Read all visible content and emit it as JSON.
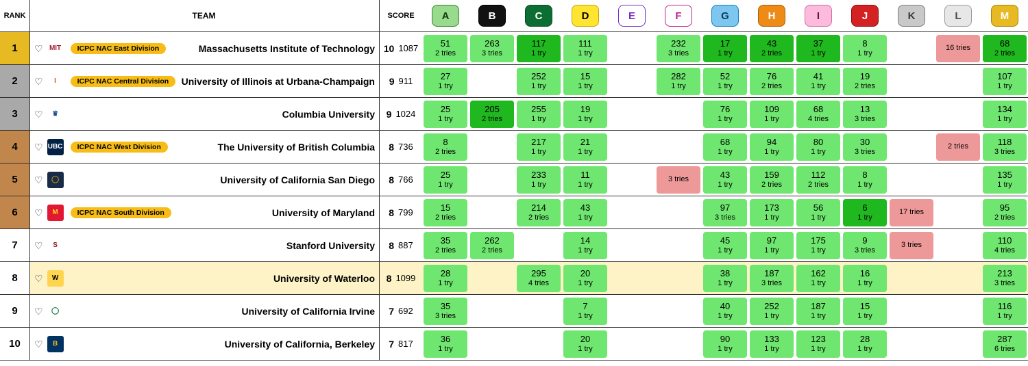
{
  "colors": {
    "solved": "#6fe66f",
    "solved_first": "#1fb81f",
    "wrong": "#ee9999",
    "rank_gold": "#e7b923",
    "rank_silver": "#a9a9a9",
    "rank_bronze": "#c0864c",
    "rank_none": "#ffffff",
    "row_highlight": "#fdf3c7",
    "division_pill": "#f7bd16",
    "border": "#333333"
  },
  "headers": {
    "rank": "RANK",
    "team": "TEAM",
    "score": "SCORE"
  },
  "problems": [
    {
      "id": "A",
      "bg": "#9ada8f",
      "border": "#2a8a1e",
      "fg": "#0b4407"
    },
    {
      "id": "B",
      "bg": "#111111",
      "border": "#000000",
      "fg": "#ffffff"
    },
    {
      "id": "C",
      "bg": "#0d6e34",
      "border": "#084a22",
      "fg": "#ffffff"
    },
    {
      "id": "D",
      "bg": "#ffe531",
      "border": "#c2a500",
      "fg": "#000000"
    },
    {
      "id": "E",
      "bg": "#ffffff",
      "border": "#7b2cc6",
      "fg": "#7b2cc6"
    },
    {
      "id": "F",
      "bg": "#ffffff",
      "border": "#c21e90",
      "fg": "#c21e90"
    },
    {
      "id": "G",
      "bg": "#7cc6ef",
      "border": "#1b7bbf",
      "fg": "#0a3a5a"
    },
    {
      "id": "H",
      "bg": "#ed8b16",
      "border": "#a85d06",
      "fg": "#ffffff"
    },
    {
      "id": "I",
      "bg": "#fcbadc",
      "border": "#d26aa6",
      "fg": "#6a1247"
    },
    {
      "id": "J",
      "bg": "#d42222",
      "border": "#8e0f0f",
      "fg": "#ffffff"
    },
    {
      "id": "K",
      "bg": "#c9c9c9",
      "border": "#7a7a7a",
      "fg": "#3a3a3a"
    },
    {
      "id": "L",
      "bg": "#e7e7e7",
      "border": "#9a9a9a",
      "fg": "#4a4a4a"
    },
    {
      "id": "M",
      "bg": "#e7b923",
      "border": "#a8820d",
      "fg": "#ffffff"
    }
  ],
  "teams": [
    {
      "rank": 1,
      "rank_color": "rank_gold",
      "name": "Massachusetts Institute of Technology",
      "division": "ICPC NAC East Division",
      "logo": {
        "bg": "#ffffff",
        "fg": "#a31f34",
        "text": "MIT"
      },
      "solved": 10,
      "time": 1087,
      "highlighted": false,
      "cells": {
        "A": {
          "status": "solved",
          "time": 51,
          "tries": "2 tries"
        },
        "B": {
          "status": "solved",
          "time": 263,
          "tries": "3 tries"
        },
        "C": {
          "status": "solved_first",
          "time": 117,
          "tries": "1 try"
        },
        "D": {
          "status": "solved",
          "time": 111,
          "tries": "1 try"
        },
        "F": {
          "status": "solved",
          "time": 232,
          "tries": "3 tries"
        },
        "G": {
          "status": "solved_first",
          "time": 17,
          "tries": "1 try"
        },
        "H": {
          "status": "solved_first",
          "time": 43,
          "tries": "2 tries"
        },
        "I": {
          "status": "solved_first",
          "time": 37,
          "tries": "1 try"
        },
        "J": {
          "status": "solved",
          "time": 8,
          "tries": "1 try"
        },
        "L": {
          "status": "wrong",
          "tries": "16 tries"
        },
        "M": {
          "status": "solved_first",
          "time": 68,
          "tries": "2 tries"
        }
      }
    },
    {
      "rank": 2,
      "rank_color": "rank_silver",
      "name": "University of Illinois at Urbana-Champaign",
      "division": "ICPC NAC Central Division",
      "logo": {
        "bg": "#ffffff",
        "fg": "#e84a27",
        "text": "I"
      },
      "solved": 9,
      "time": 911,
      "highlighted": false,
      "cells": {
        "A": {
          "status": "solved",
          "time": 27,
          "tries": "1 try"
        },
        "C": {
          "status": "solved",
          "time": 252,
          "tries": "1 try"
        },
        "D": {
          "status": "solved",
          "time": 15,
          "tries": "1 try"
        },
        "F": {
          "status": "solved",
          "time": 282,
          "tries": "1 try"
        },
        "G": {
          "status": "solved",
          "time": 52,
          "tries": "1 try"
        },
        "H": {
          "status": "solved",
          "time": 76,
          "tries": "2 tries"
        },
        "I": {
          "status": "solved",
          "time": 41,
          "tries": "1 try"
        },
        "J": {
          "status": "solved",
          "time": 19,
          "tries": "2 tries"
        },
        "M": {
          "status": "solved",
          "time": 107,
          "tries": "1 try"
        }
      }
    },
    {
      "rank": 3,
      "rank_color": "rank_silver",
      "name": "Columbia University",
      "division": null,
      "logo": {
        "bg": "#ffffff",
        "fg": "#1d4f91",
        "text": "♛"
      },
      "solved": 9,
      "time": 1024,
      "highlighted": false,
      "cells": {
        "A": {
          "status": "solved",
          "time": 25,
          "tries": "1 try"
        },
        "B": {
          "status": "solved_first",
          "time": 205,
          "tries": "2 tries"
        },
        "C": {
          "status": "solved",
          "time": 255,
          "tries": "1 try"
        },
        "D": {
          "status": "solved",
          "time": 19,
          "tries": "1 try"
        },
        "G": {
          "status": "solved",
          "time": 76,
          "tries": "1 try"
        },
        "H": {
          "status": "solved",
          "time": 109,
          "tries": "1 try"
        },
        "I": {
          "status": "solved",
          "time": 68,
          "tries": "4 tries"
        },
        "J": {
          "status": "solved",
          "time": 13,
          "tries": "3 tries"
        },
        "M": {
          "status": "solved",
          "time": 134,
          "tries": "1 try"
        }
      }
    },
    {
      "rank": 4,
      "rank_color": "rank_bronze",
      "name": "The University of British Columbia",
      "division": "ICPC NAC West Division",
      "logo": {
        "bg": "#002145",
        "fg": "#ffffff",
        "text": "UBC"
      },
      "solved": 8,
      "time": 736,
      "highlighted": false,
      "cells": {
        "A": {
          "status": "solved",
          "time": 8,
          "tries": "2 tries"
        },
        "C": {
          "status": "solved",
          "time": 217,
          "tries": "1 try"
        },
        "D": {
          "status": "solved",
          "time": 21,
          "tries": "1 try"
        },
        "G": {
          "status": "solved",
          "time": 68,
          "tries": "1 try"
        },
        "H": {
          "status": "solved",
          "time": 94,
          "tries": "1 try"
        },
        "I": {
          "status": "solved",
          "time": 80,
          "tries": "1 try"
        },
        "J": {
          "status": "solved",
          "time": 30,
          "tries": "3 tries"
        },
        "L": {
          "status": "wrong",
          "tries": "2 tries"
        },
        "M": {
          "status": "solved",
          "time": 118,
          "tries": "3 tries"
        }
      }
    },
    {
      "rank": 5,
      "rank_color": "rank_bronze",
      "name": "University of California San Diego",
      "division": null,
      "logo": {
        "bg": "#182b49",
        "fg": "#c69214",
        "text": "◯"
      },
      "solved": 8,
      "time": 766,
      "highlighted": false,
      "cells": {
        "A": {
          "status": "solved",
          "time": 25,
          "tries": "1 try"
        },
        "C": {
          "status": "solved",
          "time": 233,
          "tries": "1 try"
        },
        "D": {
          "status": "solved",
          "time": 11,
          "tries": "1 try"
        },
        "F": {
          "status": "wrong",
          "tries": "3 tries"
        },
        "G": {
          "status": "solved",
          "time": 43,
          "tries": "1 try"
        },
        "H": {
          "status": "solved",
          "time": 159,
          "tries": "2 tries"
        },
        "I": {
          "status": "solved",
          "time": 112,
          "tries": "2 tries"
        },
        "J": {
          "status": "solved",
          "time": 8,
          "tries": "1 try"
        },
        "M": {
          "status": "solved",
          "time": 135,
          "tries": "1 try"
        }
      }
    },
    {
      "rank": 6,
      "rank_color": "rank_bronze",
      "name": "University of Maryland",
      "division": "ICPC NAC South Division",
      "logo": {
        "bg": "#e21833",
        "fg": "#ffd520",
        "text": "M"
      },
      "solved": 8,
      "time": 799,
      "highlighted": false,
      "cells": {
        "A": {
          "status": "solved",
          "time": 15,
          "tries": "2 tries"
        },
        "C": {
          "status": "solved",
          "time": 214,
          "tries": "2 tries"
        },
        "D": {
          "status": "solved",
          "time": 43,
          "tries": "1 try"
        },
        "G": {
          "status": "solved",
          "time": 97,
          "tries": "3 tries"
        },
        "H": {
          "status": "solved",
          "time": 173,
          "tries": "1 try"
        },
        "I": {
          "status": "solved",
          "time": 56,
          "tries": "1 try"
        },
        "J": {
          "status": "solved_first",
          "time": 6,
          "tries": "1 try"
        },
        "K": {
          "status": "wrong",
          "tries": "17 tries"
        },
        "M": {
          "status": "solved",
          "time": 95,
          "tries": "2 tries"
        }
      }
    },
    {
      "rank": 7,
      "rank_color": "rank_none",
      "name": "Stanford University",
      "division": null,
      "logo": {
        "bg": "#ffffff",
        "fg": "#8c1515",
        "text": "S"
      },
      "solved": 8,
      "time": 887,
      "highlighted": false,
      "cells": {
        "A": {
          "status": "solved",
          "time": 35,
          "tries": "2 tries"
        },
        "B": {
          "status": "solved",
          "time": 262,
          "tries": "2 tries"
        },
        "D": {
          "status": "solved",
          "time": 14,
          "tries": "1 try"
        },
        "G": {
          "status": "solved",
          "time": 45,
          "tries": "1 try"
        },
        "H": {
          "status": "solved",
          "time": 97,
          "tries": "1 try"
        },
        "I": {
          "status": "solved",
          "time": 175,
          "tries": "1 try"
        },
        "J": {
          "status": "solved",
          "time": 9,
          "tries": "3 tries"
        },
        "K": {
          "status": "wrong",
          "tries": "3 tries"
        },
        "M": {
          "status": "solved",
          "time": 110,
          "tries": "4 tries"
        }
      }
    },
    {
      "rank": 8,
      "rank_color": "rank_none",
      "name": "University of Waterloo",
      "division": null,
      "logo": {
        "bg": "#ffd54f",
        "fg": "#000000",
        "text": "W"
      },
      "solved": 8,
      "time": 1099,
      "highlighted": true,
      "cells": {
        "A": {
          "status": "solved",
          "time": 28,
          "tries": "1 try"
        },
        "C": {
          "status": "solved",
          "time": 295,
          "tries": "4 tries"
        },
        "D": {
          "status": "solved",
          "time": 20,
          "tries": "1 try"
        },
        "G": {
          "status": "solved",
          "time": 38,
          "tries": "1 try"
        },
        "H": {
          "status": "solved",
          "time": 187,
          "tries": "3 tries"
        },
        "I": {
          "status": "solved",
          "time": 162,
          "tries": "1 try"
        },
        "J": {
          "status": "solved",
          "time": 16,
          "tries": "1 try"
        },
        "M": {
          "status": "solved",
          "time": 213,
          "tries": "3 tries"
        }
      }
    },
    {
      "rank": 9,
      "rank_color": "rank_none",
      "name": "University of California Irvine",
      "division": null,
      "logo": {
        "bg": "#ffffff",
        "fg": "#0c6b3f",
        "text": "◯"
      },
      "solved": 7,
      "time": 692,
      "highlighted": false,
      "cells": {
        "A": {
          "status": "solved",
          "time": 35,
          "tries": "3 tries"
        },
        "D": {
          "status": "solved",
          "time": 7,
          "tries": "1 try"
        },
        "G": {
          "status": "solved",
          "time": 40,
          "tries": "1 try"
        },
        "H": {
          "status": "solved",
          "time": 252,
          "tries": "1 try"
        },
        "I": {
          "status": "solved",
          "time": 187,
          "tries": "1 try"
        },
        "J": {
          "status": "solved",
          "time": 15,
          "tries": "1 try"
        },
        "M": {
          "status": "solved",
          "time": 116,
          "tries": "1 try"
        }
      }
    },
    {
      "rank": 10,
      "rank_color": "rank_none",
      "name": "University of California, Berkeley",
      "division": null,
      "logo": {
        "bg": "#003262",
        "fg": "#fdb515",
        "text": "B"
      },
      "solved": 7,
      "time": 817,
      "highlighted": false,
      "cells": {
        "A": {
          "status": "solved",
          "time": 36,
          "tries": "1 try"
        },
        "D": {
          "status": "solved",
          "time": 20,
          "tries": "1 try"
        },
        "G": {
          "status": "solved",
          "time": 90,
          "tries": "1 try"
        },
        "H": {
          "status": "solved",
          "time": 133,
          "tries": "1 try"
        },
        "I": {
          "status": "solved",
          "time": 123,
          "tries": "1 try"
        },
        "J": {
          "status": "solved",
          "time": 28,
          "tries": "1 try"
        },
        "M": {
          "status": "solved",
          "time": 287,
          "tries": "6 tries"
        }
      }
    }
  ]
}
